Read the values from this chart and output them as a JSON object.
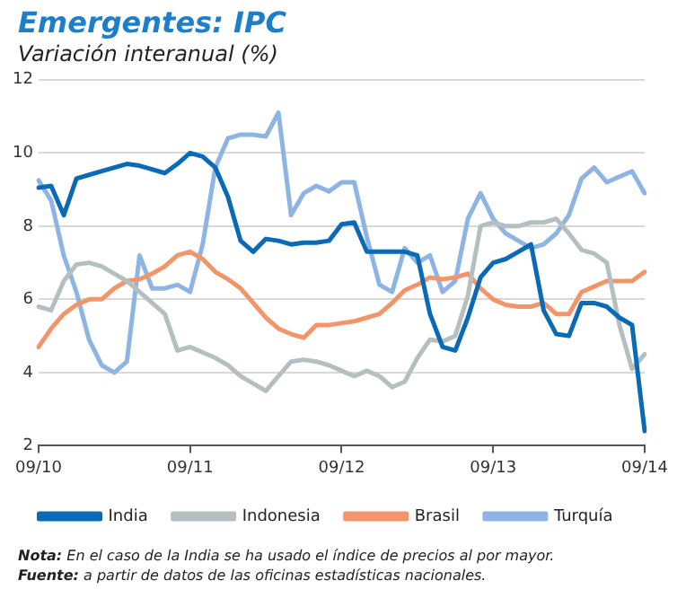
{
  "chart_data": {
    "type": "line",
    "title": "Emergentes: IPC",
    "subtitle": "Variación interanual (%)",
    "categories": [
      "09/10",
      null,
      null,
      null,
      null,
      null,
      null,
      null,
      null,
      null,
      null,
      null,
      "09/11",
      null,
      null,
      null,
      null,
      null,
      null,
      null,
      null,
      null,
      null,
      null,
      "09/12",
      null,
      null,
      null,
      null,
      null,
      null,
      null,
      null,
      null,
      null,
      null,
      "09/13",
      null,
      null,
      null,
      null,
      null,
      null,
      null,
      null,
      null,
      null,
      null,
      "09/14"
    ],
    "ylim": [
      2,
      12
    ],
    "yticks": [
      2,
      4,
      6,
      8,
      10,
      12
    ],
    "grid": "y",
    "legend": "bottom",
    "marker": "none",
    "line_style": "solid",
    "series": [
      {
        "name": "India",
        "color": "#0a6ab5",
        "values": [
          9.05,
          9.1,
          8.3,
          9.3,
          9.4,
          9.5,
          9.6,
          9.7,
          9.65,
          9.55,
          9.45,
          9.7,
          10.0,
          9.9,
          9.6,
          8.8,
          7.6,
          7.3,
          7.65,
          7.6,
          7.5,
          7.55,
          7.55,
          7.6,
          8.05,
          8.1,
          7.3,
          7.3,
          7.3,
          7.3,
          7.2,
          5.6,
          4.7,
          4.6,
          5.5,
          6.6,
          7.0,
          7.1,
          7.3,
          7.5,
          5.7,
          5.05,
          5.0,
          5.9,
          5.9,
          5.8,
          5.5,
          5.3,
          2.4
        ]
      },
      {
        "name": "Indonesia",
        "color": "#b5bfc2",
        "values": [
          5.8,
          5.7,
          6.5,
          6.95,
          7.0,
          6.9,
          6.7,
          6.5,
          6.2,
          5.9,
          5.6,
          4.6,
          4.7,
          4.55,
          4.4,
          4.2,
          3.9,
          3.7,
          3.5,
          3.9,
          4.3,
          4.35,
          4.3,
          4.2,
          4.05,
          3.9,
          4.05,
          3.9,
          3.6,
          3.75,
          4.4,
          4.9,
          4.85,
          5.0,
          6.1,
          8.0,
          8.1,
          8.0,
          8.0,
          8.1,
          8.1,
          8.2,
          7.8,
          7.35,
          7.25,
          7.0,
          5.3,
          4.1,
          4.5
        ]
      },
      {
        "name": "Brasil",
        "color": "#f3956a",
        "values": [
          4.7,
          5.2,
          5.6,
          5.85,
          6.0,
          6.0,
          6.3,
          6.5,
          6.55,
          6.7,
          6.9,
          7.2,
          7.3,
          7.1,
          6.75,
          6.55,
          6.3,
          5.9,
          5.5,
          5.2,
          5.05,
          4.95,
          5.3,
          5.3,
          5.35,
          5.4,
          5.5,
          5.6,
          5.9,
          6.25,
          6.4,
          6.6,
          6.55,
          6.6,
          6.7,
          6.3,
          6.0,
          5.85,
          5.8,
          5.8,
          5.9,
          5.6,
          5.6,
          6.2,
          6.35,
          6.5,
          6.5,
          6.5,
          6.75
        ]
      },
      {
        "name": "Turquía",
        "color": "#8db4e2",
        "values": [
          9.25,
          8.7,
          7.2,
          6.2,
          4.9,
          4.2,
          4.0,
          4.3,
          7.2,
          6.3,
          6.3,
          6.4,
          6.2,
          7.5,
          9.6,
          10.4,
          10.5,
          10.5,
          10.45,
          11.1,
          8.3,
          8.9,
          9.1,
          8.95,
          9.2,
          9.2,
          7.7,
          6.4,
          6.2,
          7.4,
          7.0,
          7.2,
          6.2,
          6.5,
          8.2,
          8.9,
          8.2,
          7.8,
          7.6,
          7.4,
          7.5,
          7.8,
          8.3,
          9.3,
          9.6,
          9.2,
          9.35,
          9.5,
          8.9
        ]
      }
    ],
    "annotations": [
      "Nota: En el caso de la India se ha usado el índice de precios al por mayor.",
      "Fuente: a partir de datos de las oficinas estadísticas nacionales."
    ]
  }
}
